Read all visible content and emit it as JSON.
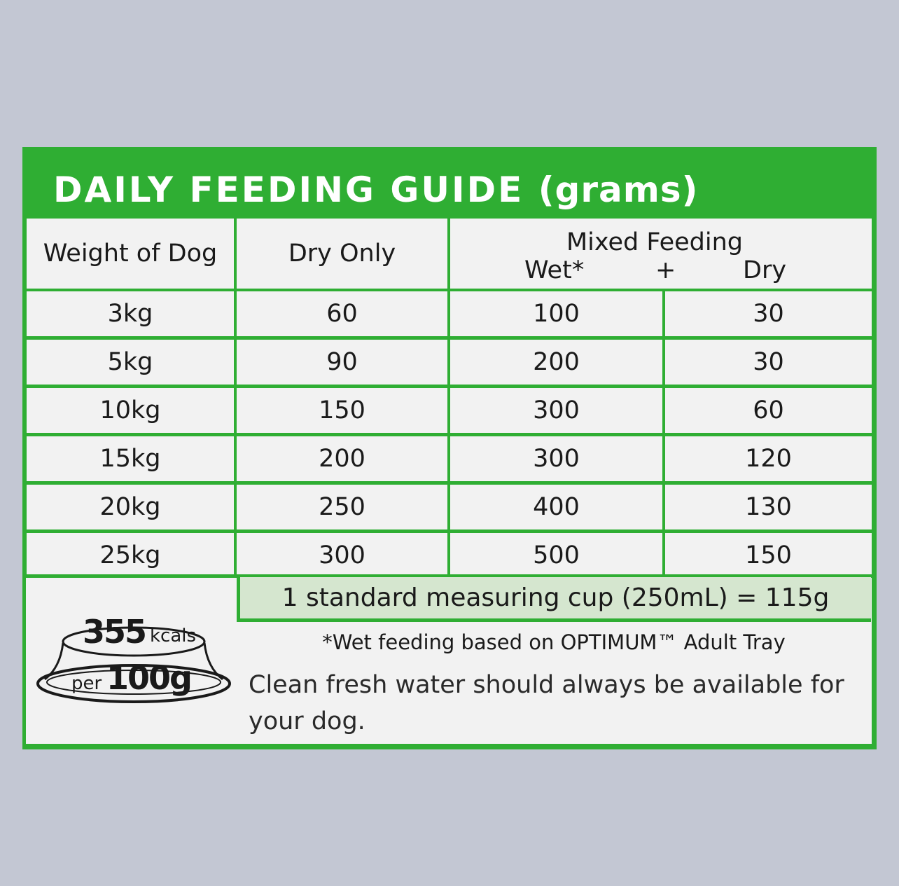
{
  "guide": {
    "title": "DAILY FEEDING GUIDE",
    "unit": "(grams)"
  },
  "headers": {
    "weight": "Weight of Dog",
    "dry_only": "Dry Only",
    "mixed": "Mixed Feeding",
    "wet": "Wet*",
    "plus": "+",
    "dry": "Dry"
  },
  "rows": [
    {
      "weight": "3kg",
      "dry_only": "60",
      "wet": "100",
      "dry": "30"
    },
    {
      "weight": "5kg",
      "dry_only": "90",
      "wet": "200",
      "dry": "30"
    },
    {
      "weight": "10kg",
      "dry_only": "150",
      "wet": "300",
      "dry": "60"
    },
    {
      "weight": "15kg",
      "dry_only": "200",
      "wet": "300",
      "dry": "120"
    },
    {
      "weight": "20kg",
      "dry_only": "250",
      "wet": "400",
      "dry": "130"
    },
    {
      "weight": "25kg",
      "dry_only": "300",
      "wet": "500",
      "dry": "150"
    }
  ],
  "badge": {
    "kcal_value": "355",
    "kcal_unit": "kcals",
    "per": "per",
    "amount": "100g"
  },
  "notes": {
    "cup": "1 standard measuring cup (250mL) = 115g",
    "wet_feeding": "*Wet feeding based on OPTIMUM™ Adult Tray",
    "water": "Clean fresh water should always be available for your dog."
  },
  "colors": {
    "brand_green": "#2fae33",
    "cup_band": "#d5e6cf",
    "background": "#c3c7d3"
  }
}
